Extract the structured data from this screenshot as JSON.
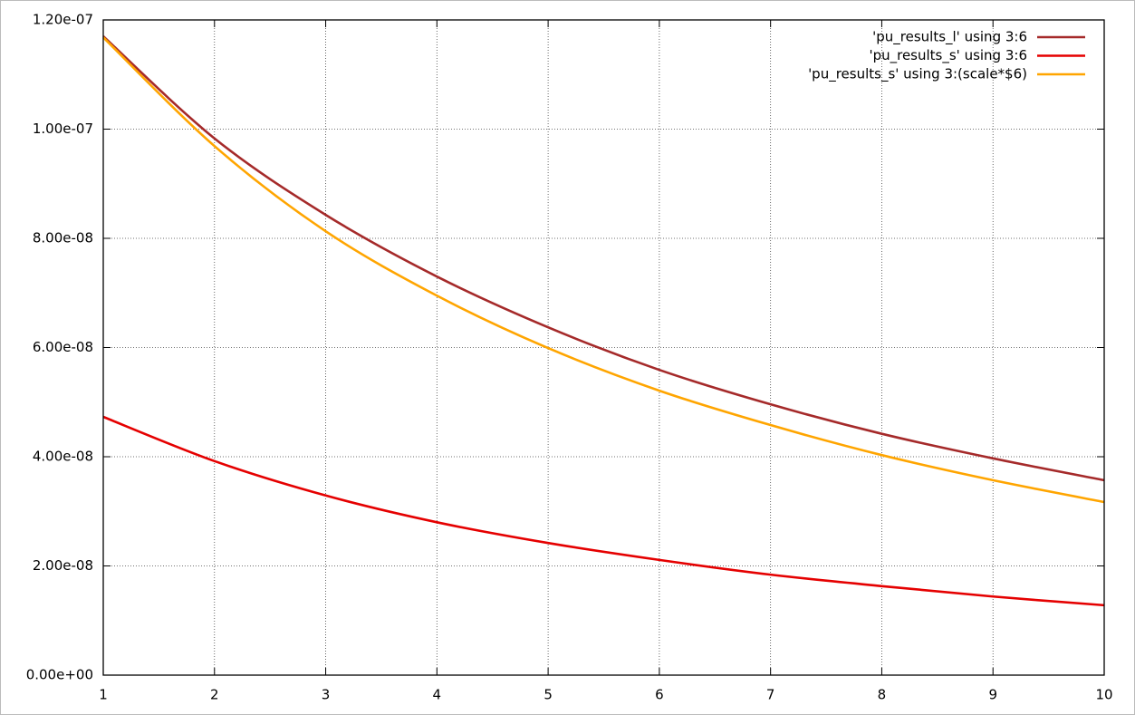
{
  "chart_data": {
    "type": "line",
    "x": [
      1,
      2,
      3,
      4,
      5,
      6,
      7,
      8,
      9,
      10
    ],
    "series": [
      {
        "name": "'pu_results_l' using 3:6",
        "color": "#a52a2a",
        "values": [
          1.17e-07,
          9.83e-08,
          8.43e-08,
          7.3e-08,
          6.37e-08,
          5.59e-08,
          4.96e-08,
          4.42e-08,
          3.97e-08,
          3.57e-08
        ]
      },
      {
        "name": "'pu_results_s' using 3:6",
        "color": "#e50000",
        "values": [
          4.73e-08,
          3.92e-08,
          3.29e-08,
          2.8e-08,
          2.42e-08,
          2.11e-08,
          1.84e-08,
          1.63e-08,
          1.44e-08,
          1.28e-08
        ]
      },
      {
        "name": "'pu_results_s' using 3:(scale*$6)",
        "color": "#ffa500",
        "values": [
          1.168e-07,
          9.69e-08,
          8.13e-08,
          6.95e-08,
          5.99e-08,
          5.21e-08,
          4.58e-08,
          4.03e-08,
          3.57e-08,
          3.17e-08
        ]
      }
    ],
    "xlim": [
      1,
      10
    ],
    "xticks": [
      1,
      2,
      3,
      4,
      5,
      6,
      7,
      8,
      9,
      10
    ],
    "ylim": [
      0,
      1.2e-07
    ],
    "yticks": [
      {
        "value": 0,
        "label": "0.00e+00"
      },
      {
        "value": 2e-08,
        "label": "2.00e-08"
      },
      {
        "value": 4e-08,
        "label": "4.00e-08"
      },
      {
        "value": 6e-08,
        "label": "6.00e-08"
      },
      {
        "value": 8e-08,
        "label": "8.00e-08"
      },
      {
        "value": 1e-07,
        "label": "1.00e-07"
      },
      {
        "value": 1.2e-07,
        "label": "1.20e-07"
      }
    ],
    "grid": true,
    "legend": "top-right"
  }
}
